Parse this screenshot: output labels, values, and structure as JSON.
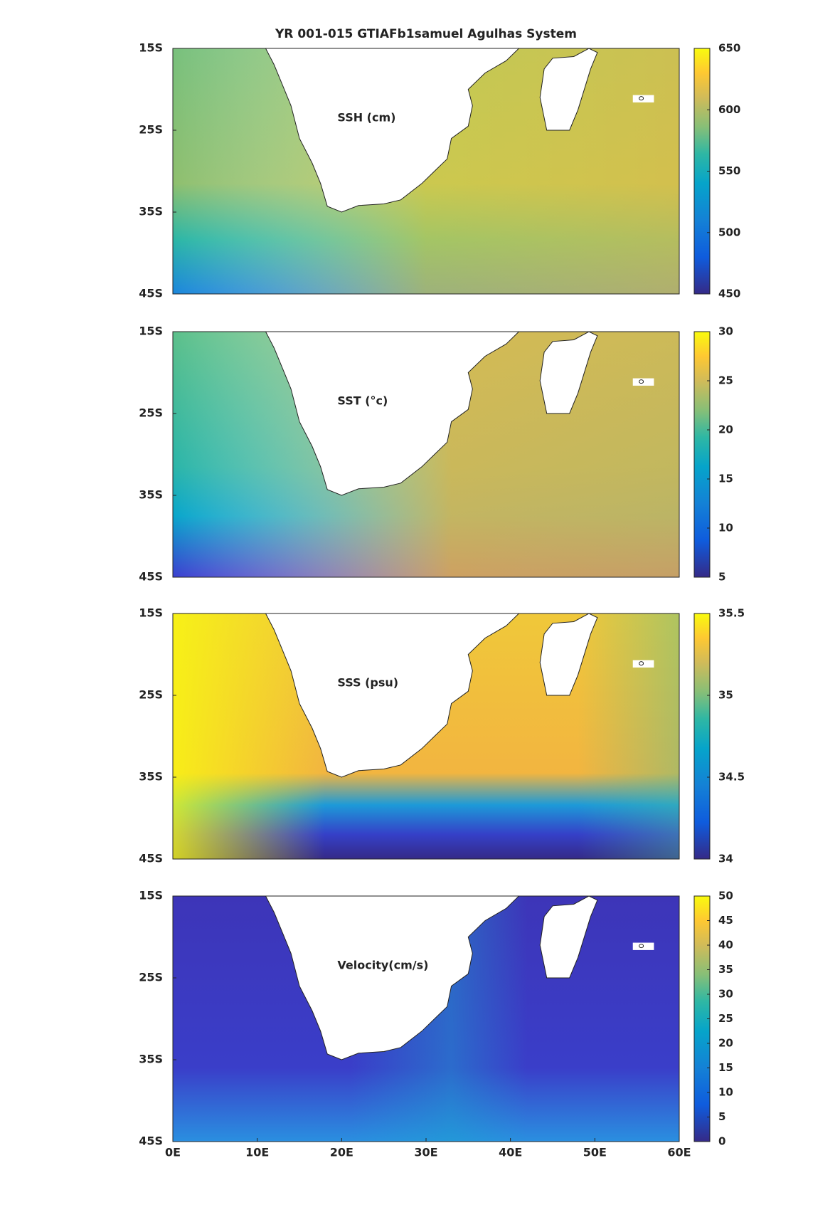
{
  "chart_data": [
    {
      "type": "heatmap",
      "title": "YR 001-015 GTIAFb1samuel Agulhas System",
      "annotation": "SSH (cm)",
      "xlim": [
        0,
        60
      ],
      "ylim": [
        -45,
        -15
      ],
      "yticks": [
        {
          "value": -15,
          "label": "15S"
        },
        {
          "value": -25,
          "label": "25S"
        },
        {
          "value": -35,
          "label": "35S"
        },
        {
          "value": -45,
          "label": "45S"
        }
      ],
      "clim": [
        450,
        650
      ],
      "cticks": [
        450,
        500,
        550,
        600,
        650
      ]
    },
    {
      "type": "heatmap",
      "annotation": "SST (°c)",
      "xlim": [
        0,
        60
      ],
      "ylim": [
        -45,
        -15
      ],
      "yticks": [
        {
          "value": -15,
          "label": "15S"
        },
        {
          "value": -25,
          "label": "25S"
        },
        {
          "value": -35,
          "label": "35S"
        },
        {
          "value": -45,
          "label": "45S"
        }
      ],
      "clim": [
        5,
        30
      ],
      "cticks": [
        5,
        10,
        15,
        20,
        25,
        30
      ]
    },
    {
      "type": "heatmap",
      "annotation": "SSS (psu)",
      "xlim": [
        0,
        60
      ],
      "ylim": [
        -45,
        -15
      ],
      "yticks": [
        {
          "value": -15,
          "label": "15S"
        },
        {
          "value": -25,
          "label": "25S"
        },
        {
          "value": -35,
          "label": "35S"
        },
        {
          "value": -45,
          "label": "45S"
        }
      ],
      "clim": [
        34,
        35.5
      ],
      "cticks": [
        34,
        34.5,
        35,
        35.5
      ]
    },
    {
      "type": "heatmap",
      "annotation": "Velocity(cm/s)",
      "xlim": [
        0,
        60
      ],
      "ylim": [
        -45,
        -15
      ],
      "yticks": [
        {
          "value": -15,
          "label": "15S"
        },
        {
          "value": -25,
          "label": "25S"
        },
        {
          "value": -35,
          "label": "35S"
        },
        {
          "value": -45,
          "label": "45S"
        }
      ],
      "xticks": [
        {
          "value": 0,
          "label": "0E"
        },
        {
          "value": 10,
          "label": "10E"
        },
        {
          "value": 20,
          "label": "20E"
        },
        {
          "value": 30,
          "label": "30E"
        },
        {
          "value": 40,
          "label": "40E"
        },
        {
          "value": 50,
          "label": "50E"
        },
        {
          "value": 60,
          "label": "60E"
        }
      ],
      "clim": [
        0,
        50
      ],
      "cticks": [
        0,
        5,
        10,
        15,
        20,
        25,
        30,
        35,
        40,
        45,
        50
      ]
    }
  ]
}
